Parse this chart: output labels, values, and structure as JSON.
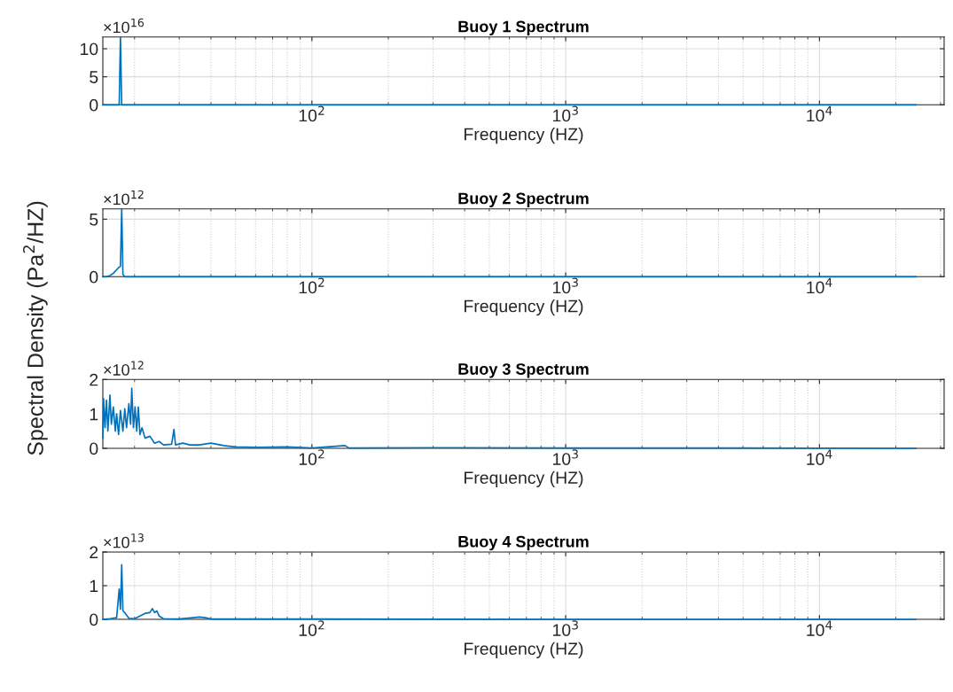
{
  "chart_data": [
    {
      "type": "line",
      "title": "Buoy 1 Spectrum",
      "xlabel": "Frequency (HZ)",
      "ylabel": "Spectral Density (Pa$^{2}$/HZ)",
      "log": "x",
      "grid": true,
      "annotations": [
        "×10$^{16}$"
      ],
      "xlim": [
        15,
        31000
      ],
      "xticks": [
        {
          "value": 100,
          "label": "10$^{2}$"
        },
        {
          "value": 1000,
          "label": "10$^{3}$"
        },
        {
          "value": 10000,
          "label": "10$^{4}$"
        }
      ],
      "ylim": [
        0,
        12.1
      ],
      "yticks": [
        0,
        5,
        10
      ],
      "series": [
        {
          "color": "#0072bd",
          "x": [
            15,
            16,
            17,
            17.4,
            17.6,
            17.8,
            18.2,
            19,
            20,
            25,
            30,
            50,
            100,
            200,
            500,
            1000,
            2000,
            5000,
            10000,
            24000
          ],
          "values": [
            0,
            0,
            0,
            0,
            12,
            0,
            0,
            0,
            0,
            0,
            0,
            0,
            0,
            0,
            0,
            0,
            0,
            0,
            0,
            0
          ]
        }
      ]
    },
    {
      "type": "line",
      "title": "Buoy 2 Spectrum",
      "xlabel": "Frequency (HZ)",
      "log": "x",
      "grid": true,
      "annotations": [
        "×10$^{12}$"
      ],
      "xlim": [
        15,
        31000
      ],
      "xticks": [
        {
          "value": 100,
          "label": "10$^{2}$"
        },
        {
          "value": 1000,
          "label": "10$^{3}$"
        },
        {
          "value": 10000,
          "label": "10$^{4}$"
        }
      ],
      "ylim": [
        0,
        5.9
      ],
      "yticks": [
        0,
        5
      ],
      "series": [
        {
          "color": "#0072bd",
          "x": [
            15,
            15.5,
            16,
            16.5,
            17,
            17.3,
            17.6,
            17.8,
            18,
            18.3,
            19,
            20,
            25,
            30,
            50,
            100,
            200,
            500,
            1000,
            2000,
            5000,
            10000,
            24000
          ],
          "values": [
            0,
            0,
            0.1,
            0.3,
            0.6,
            0.8,
            0.9,
            5.9,
            0.2,
            0,
            0,
            0,
            0,
            0,
            0,
            0,
            0,
            0,
            0,
            0,
            0,
            0,
            0
          ]
        }
      ]
    },
    {
      "type": "line",
      "title": "Buoy 3 Spectrum",
      "xlabel": "Frequency (HZ)",
      "log": "x",
      "grid": true,
      "annotations": [
        "×10$^{12}$"
      ],
      "xlim": [
        15,
        31000
      ],
      "xticks": [
        {
          "value": 100,
          "label": "10$^{2}$"
        },
        {
          "value": 1000,
          "label": "10$^{3}$"
        },
        {
          "value": 10000,
          "label": "10$^{4}$"
        }
      ],
      "ylim": [
        0,
        2
      ],
      "yticks": [
        0,
        1,
        2
      ],
      "series": [
        {
          "color": "#0072bd",
          "x": [
            15,
            15.1,
            15.3,
            15.5,
            15.7,
            16,
            16.2,
            16.5,
            16.8,
            17,
            17.3,
            17.6,
            18,
            18.3,
            18.6,
            19,
            19.3,
            19.5,
            19.8,
            20.1,
            20.4,
            20.7,
            21,
            21.4,
            22,
            23,
            24,
            25,
            26,
            28,
            28.6,
            29,
            31,
            33,
            36,
            40,
            45,
            50,
            60,
            80,
            100,
            135,
            140,
            300,
            1000,
            5000,
            24000
          ],
          "values": [
            0.3,
            1.45,
            0.6,
            1.4,
            0.5,
            1.55,
            0.7,
            1.2,
            0.5,
            1.0,
            0.4,
            1.1,
            0.5,
            1.15,
            0.6,
            1.3,
            0.7,
            1.75,
            0.6,
            1.2,
            0.5,
            1.2,
            0.4,
            0.6,
            0.3,
            0.35,
            0.15,
            0.2,
            0.1,
            0.12,
            0.55,
            0.1,
            0.15,
            0.1,
            0.1,
            0.15,
            0.08,
            0.04,
            0.03,
            0.04,
            0.01,
            0.08,
            0.01,
            0.02,
            0.01,
            0.01,
            0
          ]
        }
      ]
    },
    {
      "type": "line",
      "title": "Buoy 4 Spectrum",
      "xlabel": "Frequency (HZ)",
      "log": "x",
      "grid": true,
      "annotations": [
        "×10$^{13}$"
      ],
      "xlim": [
        15,
        31000
      ],
      "xticks": [
        {
          "value": 100,
          "label": "10$^{2}$"
        },
        {
          "value": 1000,
          "label": "10$^{3}$"
        },
        {
          "value": 10000,
          "label": "10$^{4}$"
        }
      ],
      "ylim": [
        0,
        2
      ],
      "yticks": [
        0,
        1,
        2
      ],
      "series": [
        {
          "color": "#0072bd",
          "x": [
            15,
            16,
            17,
            17.4,
            17.6,
            17.8,
            18,
            18.3,
            19,
            20,
            21,
            22,
            23,
            23.5,
            24,
            24.5,
            25,
            26,
            30,
            34,
            36,
            38,
            40,
            60,
            100,
            1000,
            10000,
            24000
          ],
          "values": [
            0,
            0.02,
            0.05,
            0.9,
            0.3,
            1.62,
            0.25,
            0.2,
            0.03,
            0.02,
            0.1,
            0.18,
            0.2,
            0.32,
            0.2,
            0.25,
            0.1,
            0.02,
            0.01,
            0.05,
            0.07,
            0.05,
            0.01,
            0.01,
            0.01,
            0,
            0,
            0
          ]
        }
      ]
    }
  ]
}
